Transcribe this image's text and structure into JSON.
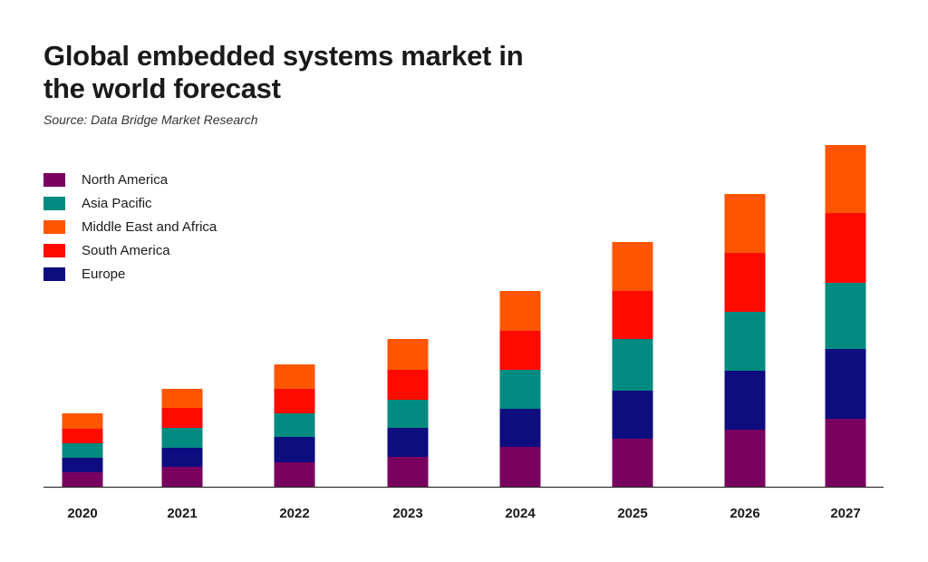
{
  "title": "Global embedded systems market in the world forecast",
  "subtitle": "Source: Data Bridge Market Research",
  "colors": {
    "north_america": "#7a0060",
    "europe": "#0d0d80",
    "asia_pacific": "#008a80",
    "south_america": "#ff0a00",
    "middle_east_africa": "#ff5500",
    "axis": "#333333"
  },
  "legend": [
    {
      "label": "North America",
      "color": "#7a0060"
    },
    {
      "label": "Asia Pacific",
      "color": "#008a80"
    },
    {
      "label": "Middle East and Africa",
      "color": "#ff5500"
    },
    {
      "label": "South America",
      "color": "#ff0a00"
    },
    {
      "label": "Europe",
      "color": "#0d0d80"
    }
  ],
  "chart_data": {
    "type": "bar",
    "stacked": true,
    "title": "Global embedded systems market in the world forecast",
    "subtitle": "Source: Data Bridge Market Research",
    "xlabel": "",
    "ylabel": "",
    "y_axis_visible": false,
    "grid": false,
    "legend_position": "top-left",
    "categories": [
      "2020",
      "2021",
      "2022",
      "2023",
      "2024",
      "2025",
      "2026",
      "2027"
    ],
    "ylim": [
      0,
      380
    ],
    "series": [
      {
        "name": "North America",
        "color": "#7a0060",
        "values": [
          16,
          22,
          27,
          33,
          44,
          53,
          63,
          75
        ]
      },
      {
        "name": "Europe",
        "color": "#0d0d80",
        "values": [
          16,
          21,
          28,
          32,
          42,
          53,
          65,
          77
        ]
      },
      {
        "name": "Asia Pacific",
        "color": "#008a80",
        "values": [
          16,
          22,
          26,
          31,
          43,
          57,
          65,
          73
        ]
      },
      {
        "name": "South America",
        "color": "#ff0a00",
        "values": [
          16,
          22,
          27,
          33,
          43,
          53,
          65,
          77
        ]
      },
      {
        "name": "Middle East and Africa",
        "color": "#ff5500",
        "values": [
          17,
          21,
          27,
          34,
          44,
          54,
          65,
          75
        ]
      }
    ]
  }
}
